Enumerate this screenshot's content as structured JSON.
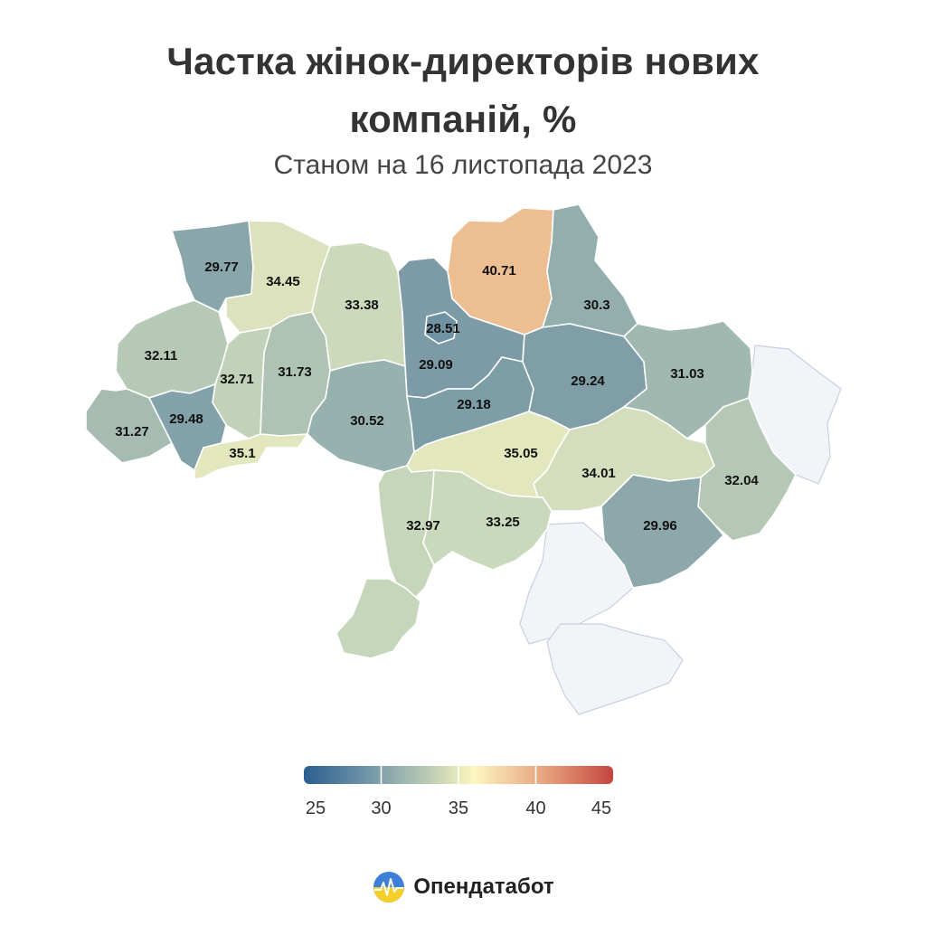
{
  "title_line1": "Частка жінок-директорів нових",
  "title_line2": "компаній, %",
  "subtitle": "Станом на 16 листопада 2023",
  "brand": "Опендатабот",
  "colors": {
    "scale": [
      "#2b5f8e",
      "#7a9aa6",
      "#c7d6bb",
      "#fdf7c0",
      "#edba8f",
      "#c4463f"
    ],
    "occupied": "#f3f4f8",
    "text": "#333333"
  },
  "legend": {
    "min": 25,
    "max": 45,
    "ticks": [
      25,
      30,
      35,
      40,
      45
    ]
  },
  "regions": [
    {
      "id": "volyn",
      "value": 29.77,
      "label": "29.77"
    },
    {
      "id": "rivne",
      "value": 34.45,
      "label": "34.45"
    },
    {
      "id": "zhytomyr",
      "value": 33.38,
      "label": "33.38"
    },
    {
      "id": "kyiv-oblast",
      "value": 29.09,
      "label": "29.09"
    },
    {
      "id": "kyiv-city",
      "value": 28.51,
      "label": "28.51"
    },
    {
      "id": "chernihiv",
      "value": 40.71,
      "label": "40.71"
    },
    {
      "id": "sumy",
      "value": 30.3,
      "label": "30.3"
    },
    {
      "id": "lviv",
      "value": 32.11,
      "label": "32.11"
    },
    {
      "id": "ternopil",
      "value": 32.71,
      "label": "32.71"
    },
    {
      "id": "khmelnytskyi",
      "value": 31.73,
      "label": "31.73"
    },
    {
      "id": "vinnytsia",
      "value": 30.52,
      "label": "30.52"
    },
    {
      "id": "cherkasy",
      "value": 29.18,
      "label": "29.18"
    },
    {
      "id": "poltava",
      "value": 29.24,
      "label": "29.24"
    },
    {
      "id": "kharkiv",
      "value": 31.03,
      "label": "31.03"
    },
    {
      "id": "zakarpattia",
      "value": 31.27,
      "label": "31.27"
    },
    {
      "id": "ivano-frankivsk",
      "value": 29.48,
      "label": "29.48"
    },
    {
      "id": "chernivtsi",
      "value": 35.1,
      "label": "35.1"
    },
    {
      "id": "kirovohrad",
      "value": 35.05,
      "label": "35.05"
    },
    {
      "id": "dnipropetrovsk",
      "value": 34.01,
      "label": "34.01"
    },
    {
      "id": "luhansk",
      "value": 32.04,
      "label": "32.04"
    },
    {
      "id": "odesa",
      "value": 32.97,
      "label": "32.97"
    },
    {
      "id": "mykolaiv",
      "value": 33.25,
      "label": "33.25"
    },
    {
      "id": "zaporizhzhia",
      "value": 29.96,
      "label": "29.96"
    },
    {
      "id": "odesa-south",
      "value": 32.97,
      "label": ""
    }
  ]
}
